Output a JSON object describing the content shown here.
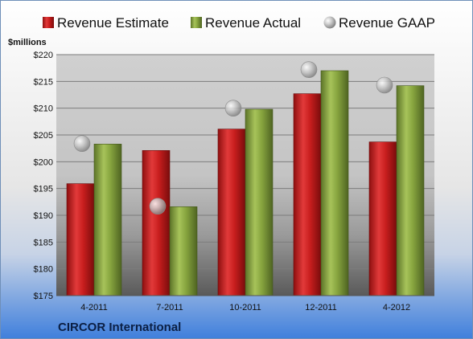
{
  "company": "CIRCOR International",
  "chart_data": {
    "type": "bar",
    "ylabel": "$millions",
    "ylim": [
      175,
      220
    ],
    "yticks": [
      175,
      180,
      185,
      190,
      195,
      200,
      205,
      210,
      215,
      220
    ],
    "ytick_labels": [
      "$175",
      "$180",
      "$185",
      "$190",
      "$195",
      "$200",
      "$205",
      "$210",
      "$215",
      "$220"
    ],
    "categories": [
      "4-2011",
      "7-2011",
      "10-2011",
      "12-2011",
      "4-2012"
    ],
    "series": [
      {
        "name": "Revenue Estimate",
        "kind": "bar",
        "color": "#cc1f1f",
        "values": [
          195.9,
          202.1,
          206.1,
          212.7,
          203.7
        ]
      },
      {
        "name": "Revenue Actual",
        "kind": "bar",
        "color": "#7f9f3a",
        "values": [
          203.3,
          191.6,
          209.8,
          217.0,
          214.2
        ]
      },
      {
        "name": "Revenue GAAP",
        "kind": "marker",
        "color": "#b8b8b8",
        "values": [
          203.4,
          191.7,
          210.0,
          217.2,
          214.3
        ]
      }
    ],
    "legend_position": "top",
    "grid": true
  }
}
